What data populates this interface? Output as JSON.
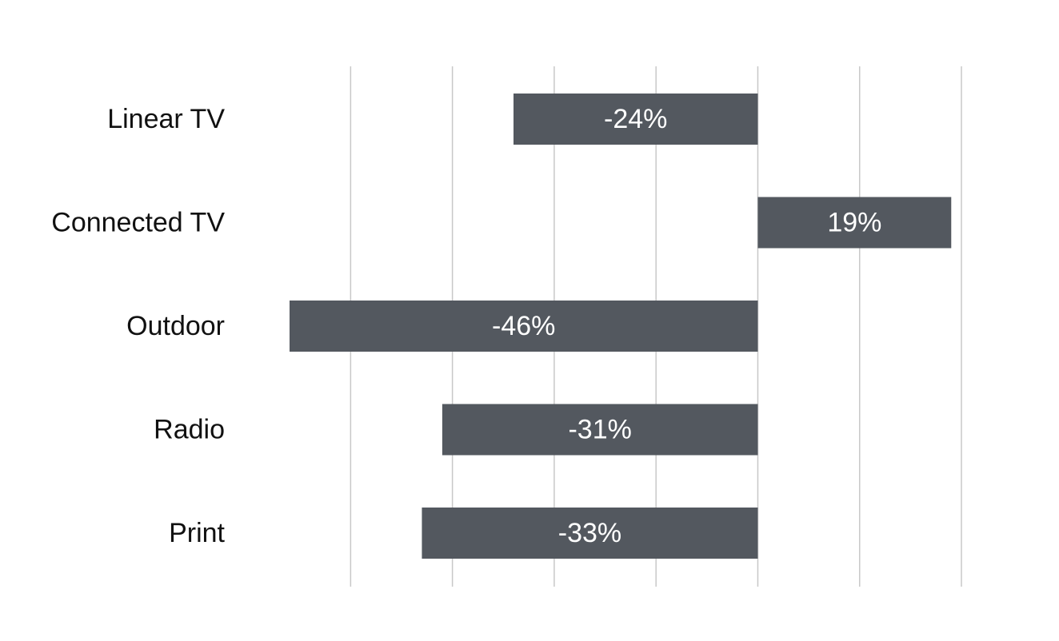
{
  "chart_data": {
    "type": "bar",
    "orientation": "horizontal",
    "categories": [
      "Linear TV",
      "Connected TV",
      "Outdoor",
      "Radio",
      "Print"
    ],
    "values": [
      -24,
      19,
      -46,
      -31,
      -33
    ],
    "data_labels": [
      "-24%",
      "19%",
      "-46%",
      "-31%",
      "-33%"
    ],
    "xlim": [
      -46,
      20
    ],
    "grid_values": [
      -40,
      -30,
      -20,
      -10,
      0,
      10,
      20
    ],
    "grid": true,
    "bar_color": "#53585f",
    "grid_color": "#c8c8c8",
    "title": "",
    "xlabel": "",
    "ylabel": ""
  }
}
